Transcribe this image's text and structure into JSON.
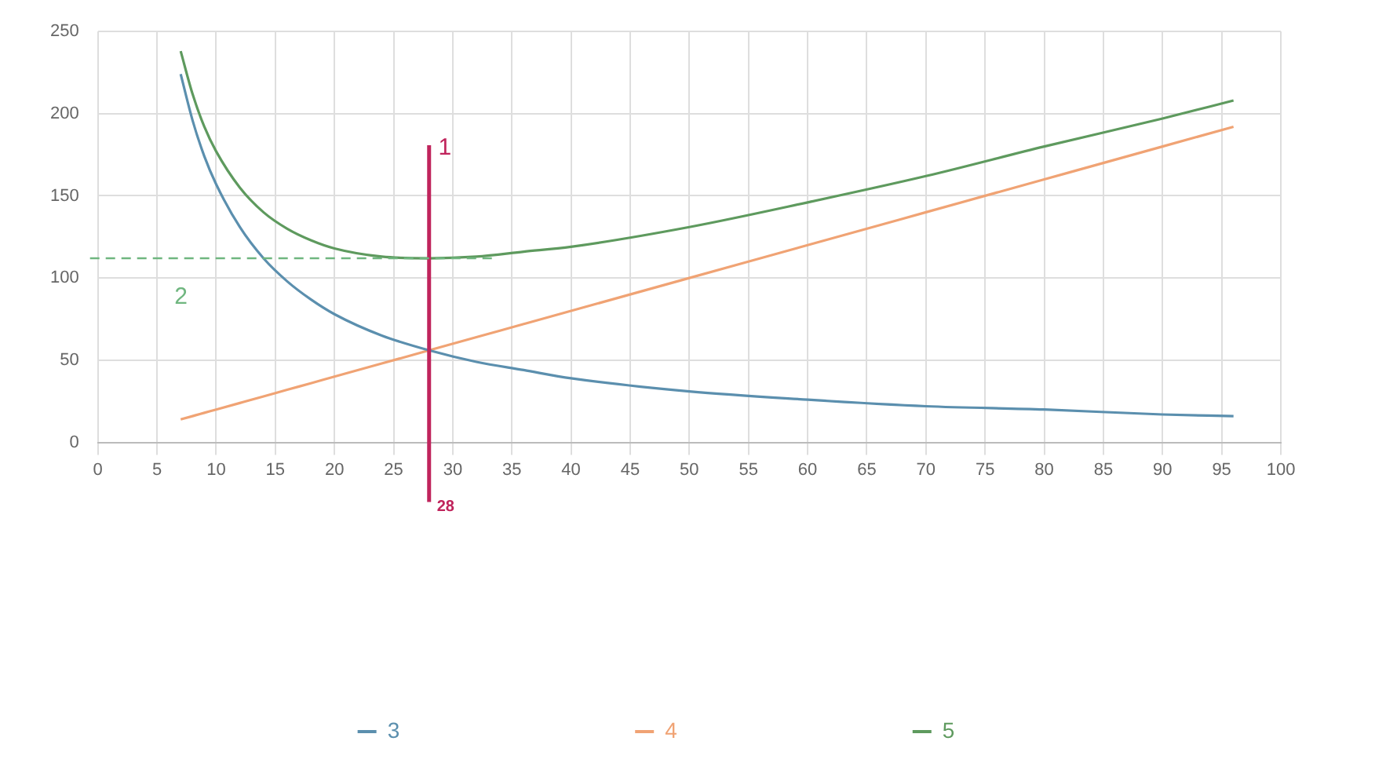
{
  "chart_data": {
    "type": "line",
    "x": [
      7,
      8,
      9,
      10,
      12,
      14,
      16,
      18,
      20,
      24,
      28,
      32,
      36,
      40,
      50,
      60,
      70,
      80,
      90,
      96
    ],
    "series": [
      {
        "name": "3",
        "color": "#5b8fae",
        "values": [
          224,
          196,
          174,
          157,
          131,
          112,
          98,
          87,
          78,
          65,
          56,
          49,
          44,
          39,
          31,
          26,
          22,
          20,
          17,
          16
        ]
      },
      {
        "name": "4",
        "color": "#f0a374",
        "values": [
          14,
          16,
          18,
          20,
          24,
          28,
          32,
          36,
          40,
          48,
          56,
          64,
          72,
          80,
          100,
          120,
          140,
          160,
          180,
          192
        ]
      },
      {
        "name": "5",
        "color": "#5e9a5e",
        "values": [
          238,
          212,
          192,
          177,
          155,
          140,
          130,
          123,
          118,
          113,
          112,
          113,
          116,
          119,
          131,
          146,
          162,
          180,
          197,
          208
        ]
      }
    ],
    "xlim": [
      0,
      100
    ],
    "xticks": [
      0,
      5,
      10,
      15,
      20,
      25,
      30,
      35,
      40,
      45,
      50,
      55,
      60,
      65,
      70,
      75,
      80,
      85,
      90,
      95,
      100
    ],
    "ylim": [
      0,
      250
    ],
    "yticks": [
      0,
      50,
      100,
      150,
      200,
      250
    ],
    "grid": true,
    "legend": "bottom",
    "marker": "none",
    "line_style": "solid",
    "ref_lines": [
      {
        "axis": "x",
        "value": 28,
        "label": "28",
        "color": "#c0245c"
      },
      {
        "axis": "y",
        "value": 112,
        "color": "#6fb67f",
        "line_style": "dashed"
      }
    ],
    "annotations": [
      "1",
      "2"
    ]
  }
}
